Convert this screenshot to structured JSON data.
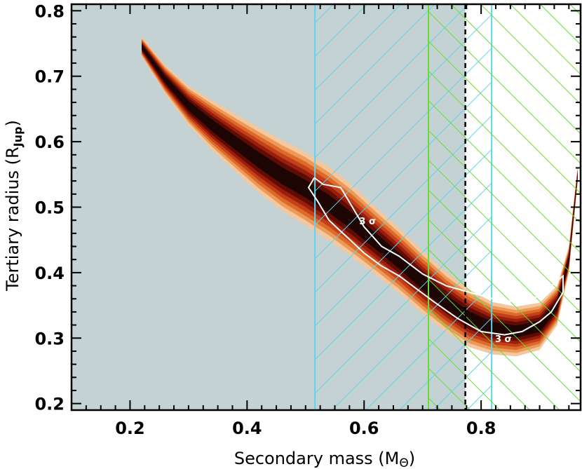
{
  "chart_data": {
    "type": "contour",
    "title": "",
    "xlabel": "Secondary mass (M",
    "xlabel_symbol": "Θ",
    "xlabel_suffix": ")",
    "ylabel": "Tertiary radius (R",
    "ylabel_sub": "Jup",
    "ylabel_suffix": ")",
    "xlim": [
      0.1,
      0.97
    ],
    "ylim": [
      0.19,
      0.81
    ],
    "x_ticks": [
      0.2,
      0.4,
      0.6,
      0.8
    ],
    "x_tick_labels": [
      "0.2",
      "0.4",
      "0.6",
      "0.8"
    ],
    "y_ticks": [
      0.2,
      0.3,
      0.4,
      0.5,
      0.6,
      0.7,
      0.8
    ],
    "y_tick_labels": [
      "0.2",
      "0.3",
      "0.4",
      "0.5",
      "0.6",
      "0.7",
      "0.8"
    ],
    "shaded_region": {
      "x_range": [
        0.1,
        0.773
      ],
      "color": "#c5d2d4"
    },
    "cyan_hatch_region": {
      "x_range": [
        0.516,
        0.818
      ],
      "color": "#5fd3ee"
    },
    "green_hatch_region": {
      "x_range": [
        0.71,
        0.97
      ],
      "color": "#66dd33"
    },
    "dashed_line_x": 0.773,
    "density_ridge": [
      [
        0.22,
        0.745
      ],
      [
        0.26,
        0.695
      ],
      [
        0.3,
        0.655
      ],
      [
        0.34,
        0.625
      ],
      [
        0.38,
        0.598
      ],
      [
        0.42,
        0.572
      ],
      [
        0.46,
        0.548
      ],
      [
        0.5,
        0.528
      ],
      [
        0.54,
        0.505
      ],
      [
        0.58,
        0.478
      ],
      [
        0.62,
        0.448
      ],
      [
        0.66,
        0.418
      ],
      [
        0.7,
        0.385
      ],
      [
        0.74,
        0.355
      ],
      [
        0.78,
        0.33
      ],
      [
        0.82,
        0.315
      ],
      [
        0.86,
        0.31
      ],
      [
        0.9,
        0.318
      ],
      [
        0.93,
        0.35
      ],
      [
        0.95,
        0.42
      ],
      [
        0.965,
        0.55
      ]
    ],
    "density_halfwidth": [
      0.015,
      0.022,
      0.03,
      0.038,
      0.044,
      0.05,
      0.054,
      0.056,
      0.056,
      0.055,
      0.052,
      0.05,
      0.048,
      0.046,
      0.044,
      0.04,
      0.038,
      0.036,
      0.03,
      0.02,
      0.012
    ],
    "density_levels": [
      {
        "scale": 1.0,
        "color": "#f4c79c"
      },
      {
        "scale": 0.86,
        "color": "#ec9a5a"
      },
      {
        "scale": 0.74,
        "color": "#de6a2a"
      },
      {
        "scale": 0.62,
        "color": "#c2401a"
      },
      {
        "scale": 0.5,
        "color": "#9a1e0c"
      },
      {
        "scale": 0.38,
        "color": "#5e0c04"
      },
      {
        "scale": 0.24,
        "color": "#1c0502"
      }
    ],
    "sigma_contour": [
      [
        0.515,
        0.545
      ],
      [
        0.53,
        0.535
      ],
      [
        0.56,
        0.53
      ],
      [
        0.58,
        0.5
      ],
      [
        0.6,
        0.47
      ],
      [
        0.63,
        0.44
      ],
      [
        0.66,
        0.425
      ],
      [
        0.7,
        0.398
      ],
      [
        0.74,
        0.38
      ],
      [
        0.78,
        0.37
      ],
      [
        0.82,
        0.36
      ],
      [
        0.86,
        0.355
      ],
      [
        0.89,
        0.36
      ],
      [
        0.92,
        0.38
      ],
      [
        0.94,
        0.395
      ],
      [
        0.94,
        0.37
      ],
      [
        0.92,
        0.34
      ],
      [
        0.9,
        0.325
      ],
      [
        0.87,
        0.31
      ],
      [
        0.84,
        0.305
      ],
      [
        0.8,
        0.31
      ],
      [
        0.76,
        0.33
      ],
      [
        0.72,
        0.355
      ],
      [
        0.69,
        0.375
      ],
      [
        0.66,
        0.395
      ],
      [
        0.63,
        0.41
      ],
      [
        0.6,
        0.43
      ],
      [
        0.57,
        0.455
      ],
      [
        0.54,
        0.48
      ],
      [
        0.52,
        0.51
      ],
      [
        0.505,
        0.53
      ],
      [
        0.515,
        0.545
      ]
    ],
    "sigma_labels": [
      {
        "text": "3 σ",
        "x": 0.606,
        "y": 0.474
      },
      {
        "text": "3 σ",
        "x": 0.838,
        "y": 0.294
      }
    ]
  }
}
